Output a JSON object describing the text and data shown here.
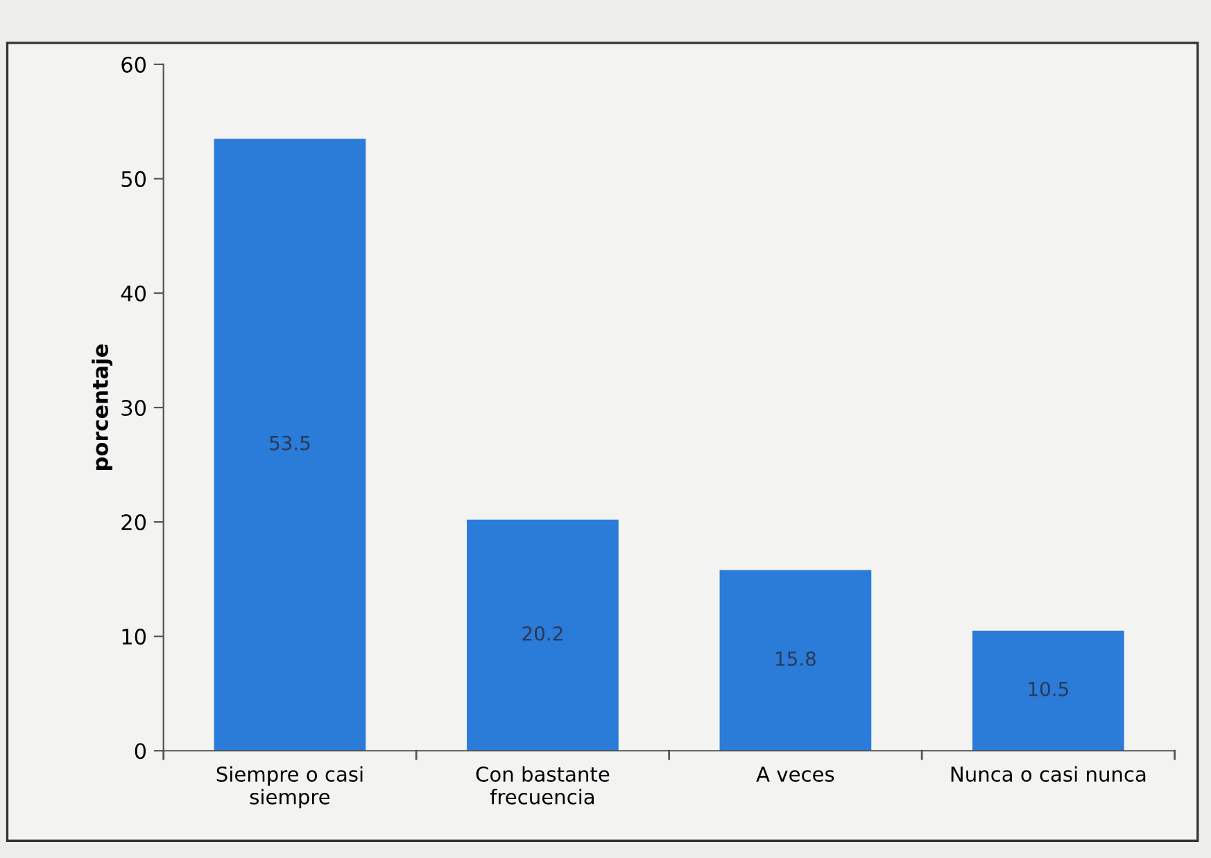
{
  "chart_data": {
    "type": "bar",
    "categories": [
      "Siempre o casi\nsiempre",
      "Con bastante\nfrecuencia",
      "A veces",
      "Nunca o casi nunca"
    ],
    "values": [
      53.5,
      20.2,
      15.8,
      10.5
    ],
    "color": "#2b7bd8",
    "ylabel": "porcentaje",
    "ylim": [
      0,
      60
    ],
    "yticks": [
      0,
      10,
      20,
      30,
      40,
      50,
      60
    ],
    "data_labels": true
  }
}
